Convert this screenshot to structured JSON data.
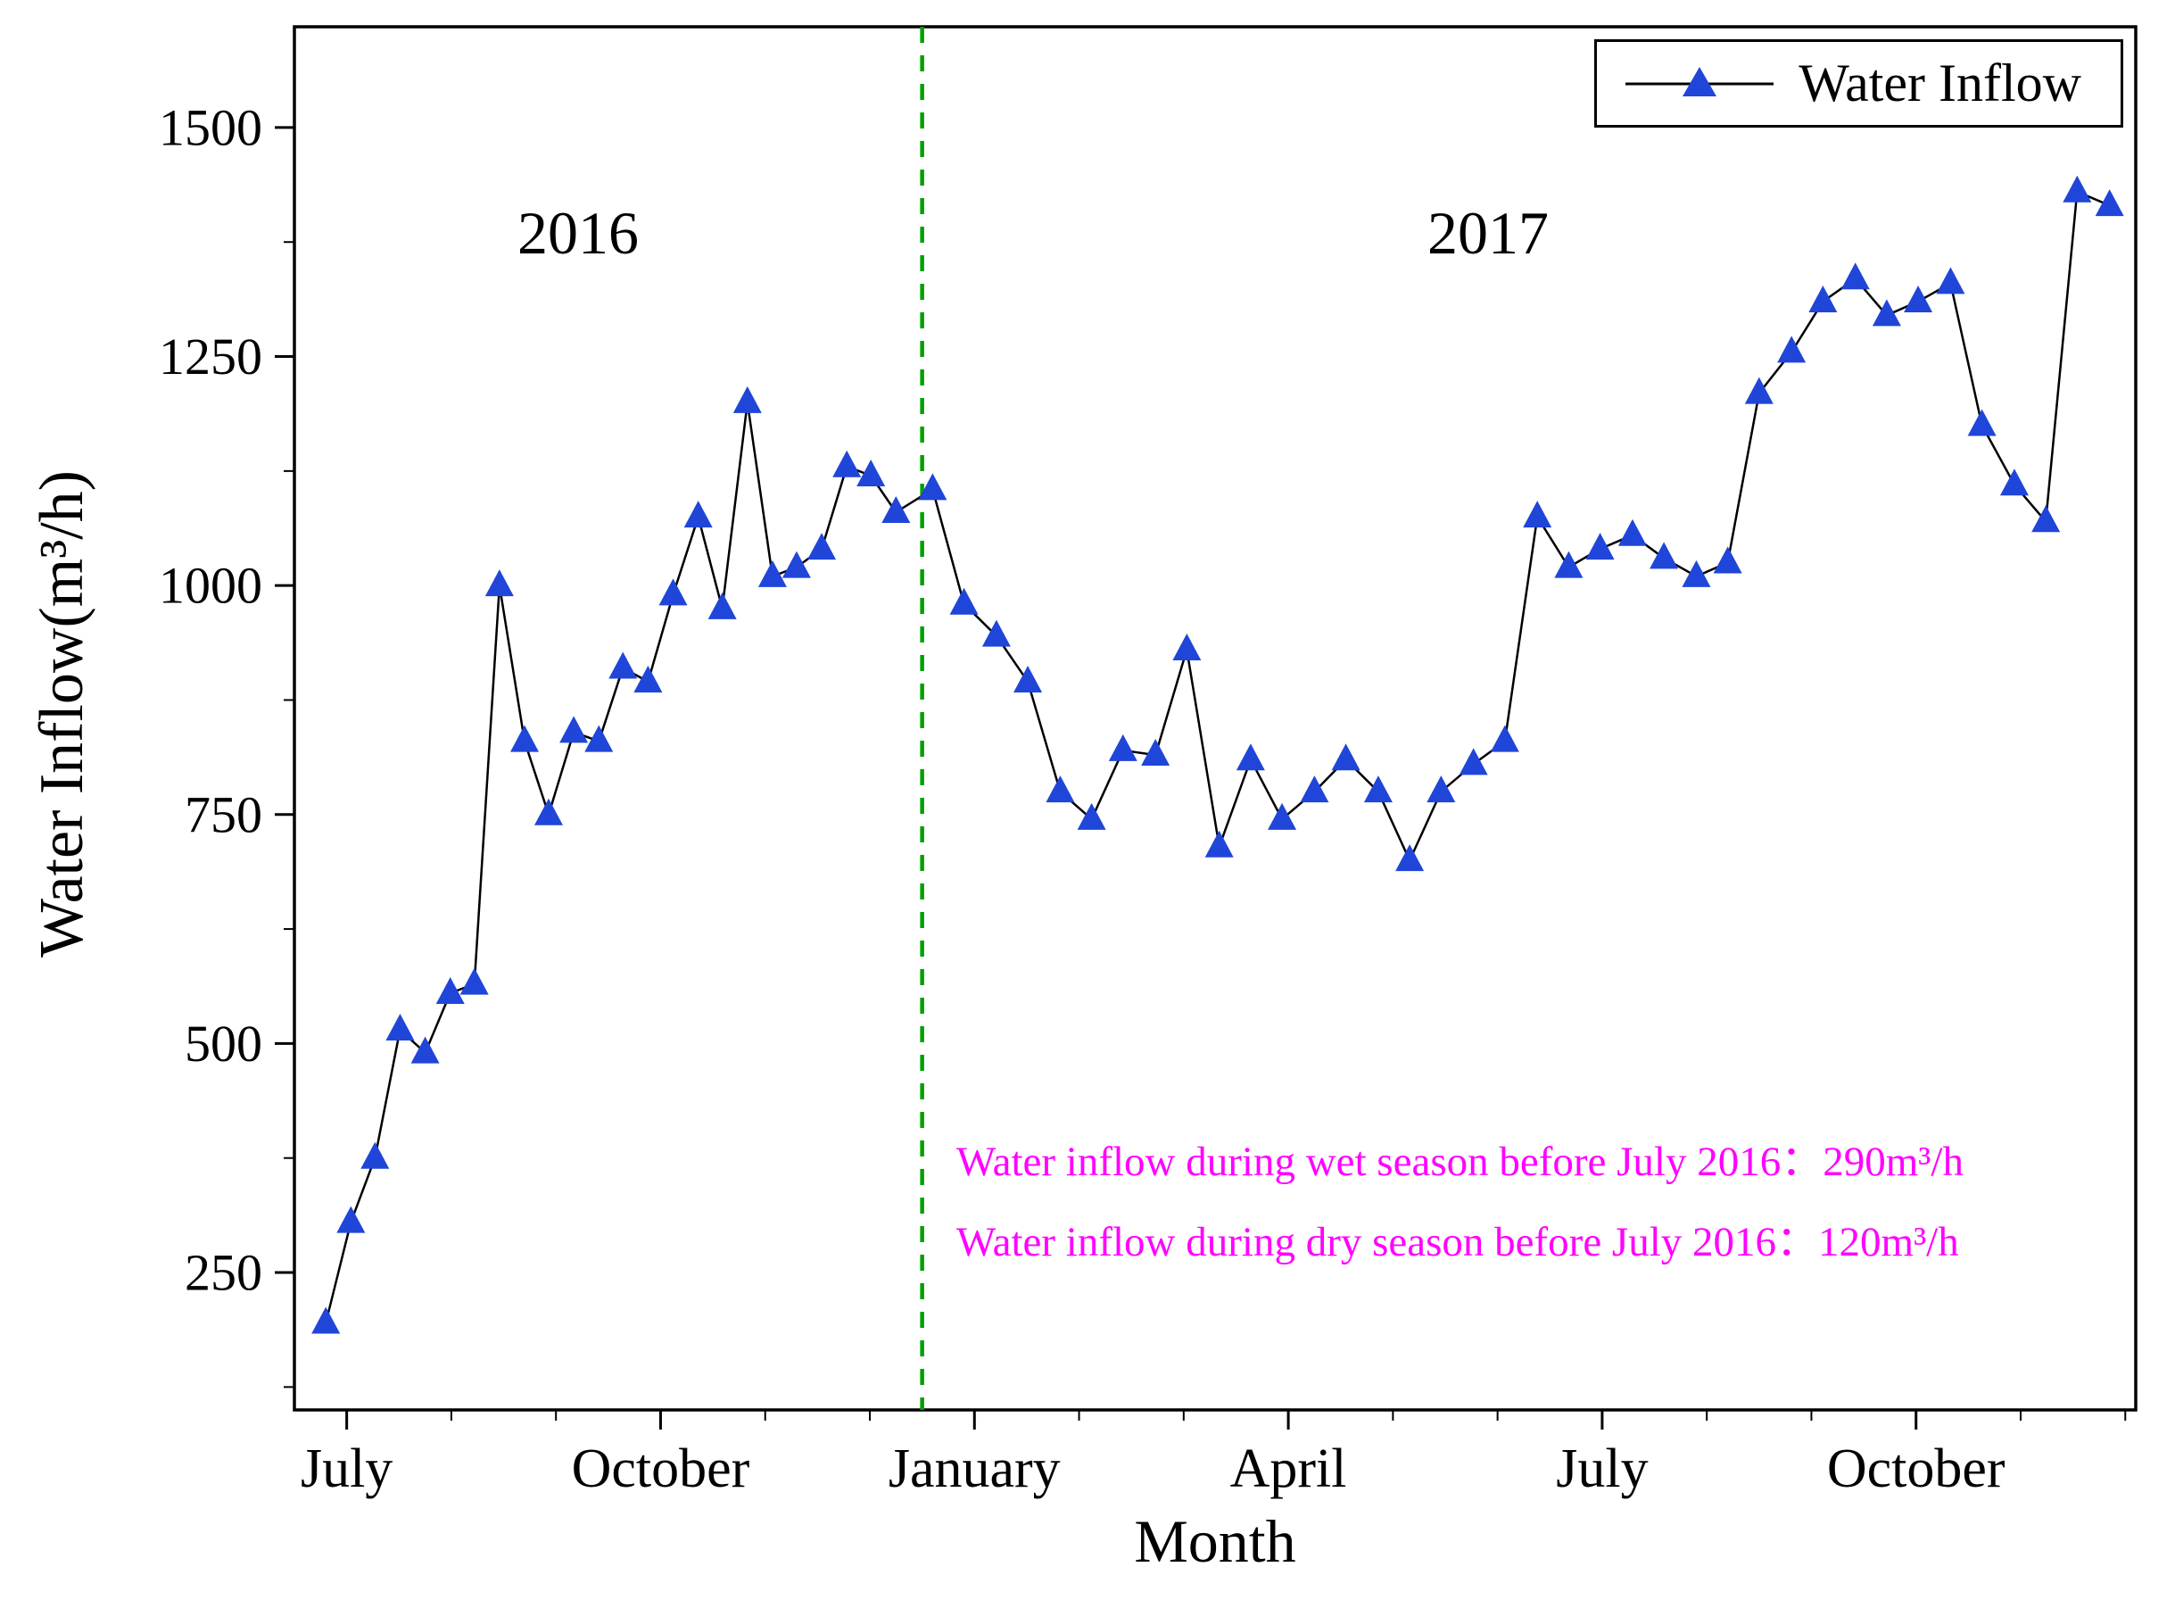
{
  "chart_data": {
    "type": "line",
    "title": "",
    "xlabel": "Month",
    "ylabel": "Water Inflow(m³/h)",
    "x_unit": "months since July 2016",
    "xlim": [
      0,
      17.6
    ],
    "ylim": [
      100,
      1610
    ],
    "grid": false,
    "frame": true,
    "y_major_ticks": [
      250,
      500,
      750,
      1000,
      1250,
      1500
    ],
    "y_minor_ticks": [
      125,
      375,
      625,
      875,
      1125,
      1375
    ],
    "x_major_ticks": [
      {
        "pos": 0.5,
        "label": "July"
      },
      {
        "pos": 3.5,
        "label": "October"
      },
      {
        "pos": 6.5,
        "label": "January"
      },
      {
        "pos": 9.5,
        "label": "April"
      },
      {
        "pos": 12.5,
        "label": "July"
      },
      {
        "pos": 15.5,
        "label": "October"
      }
    ],
    "x_minor_ticks": [
      1.5,
      2.5,
      4.5,
      5.5,
      7.5,
      8.5,
      10.5,
      11.5,
      13.5,
      14.5,
      16.5,
      17.5
    ],
    "year_divider": {
      "pos": 6.0,
      "color": "#00a000",
      "style": "dashed"
    },
    "year_labels": [
      {
        "text": "2016"
      },
      {
        "text": "2017"
      }
    ],
    "notes": [
      {
        "text": "Water inflow during wet season before July 2016：290m³/h",
        "color": "#ff00ff"
      },
      {
        "text": "Water inflow during dry season before July 2016：120m³/h",
        "color": "#ff00ff"
      }
    ],
    "legend": {
      "label": "Water Inflow",
      "position": "top-right",
      "marker": "triangle-icon"
    },
    "series": [
      {
        "name": "Water Inflow",
        "marker": "triangle",
        "marker_color": "#1f46d8",
        "line_color": "#000000",
        "points": [
          [
            0.3,
            195
          ],
          [
            0.54,
            305
          ],
          [
            0.77,
            375
          ],
          [
            1.01,
            515
          ],
          [
            1.25,
            490
          ],
          [
            1.49,
            555
          ],
          [
            1.72,
            565
          ],
          [
            1.96,
            1000
          ],
          [
            2.2,
            830
          ],
          [
            2.43,
            750
          ],
          [
            2.67,
            840
          ],
          [
            2.91,
            830
          ],
          [
            3.14,
            910
          ],
          [
            3.38,
            895
          ],
          [
            3.62,
            990
          ],
          [
            3.86,
            1075
          ],
          [
            4.09,
            975
          ],
          [
            4.33,
            1200
          ],
          [
            4.57,
            1010
          ],
          [
            4.8,
            1020
          ],
          [
            5.04,
            1040
          ],
          [
            5.28,
            1130
          ],
          [
            5.51,
            1120
          ],
          [
            5.75,
            1080
          ],
          [
            6.1,
            1105
          ],
          [
            6.4,
            980
          ],
          [
            6.71,
            945
          ],
          [
            7.01,
            895
          ],
          [
            7.32,
            775
          ],
          [
            7.62,
            745
          ],
          [
            7.92,
            820
          ],
          [
            8.23,
            815
          ],
          [
            8.53,
            930
          ],
          [
            8.84,
            715
          ],
          [
            9.14,
            810
          ],
          [
            9.44,
            745
          ],
          [
            9.75,
            775
          ],
          [
            10.05,
            810
          ],
          [
            10.36,
            775
          ],
          [
            10.66,
            700
          ],
          [
            10.96,
            775
          ],
          [
            11.27,
            805
          ],
          [
            11.57,
            830
          ],
          [
            11.88,
            1075
          ],
          [
            12.18,
            1020
          ],
          [
            12.48,
            1040
          ],
          [
            12.79,
            1055
          ],
          [
            13.09,
            1030
          ],
          [
            13.4,
            1010
          ],
          [
            13.7,
            1025
          ],
          [
            14.0,
            1210
          ],
          [
            14.31,
            1255
          ],
          [
            14.61,
            1310
          ],
          [
            14.92,
            1335
          ],
          [
            15.22,
            1295
          ],
          [
            15.52,
            1310
          ],
          [
            15.83,
            1330
          ],
          [
            16.13,
            1175
          ],
          [
            16.44,
            1110
          ],
          [
            16.74,
            1070
          ],
          [
            17.04,
            1430
          ],
          [
            17.35,
            1415
          ]
        ]
      }
    ]
  }
}
